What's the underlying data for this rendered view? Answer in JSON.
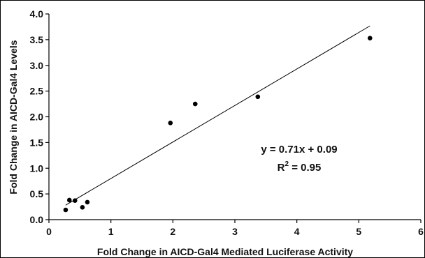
{
  "chart_data": {
    "type": "scatter",
    "xlabel": "Fold Change in AICD-Gal4 Mediated Luciferase Activity",
    "ylabel": "Fold Change in AICD-Gal4 Levels",
    "xlim": [
      0,
      6
    ],
    "ylim": [
      0,
      4
    ],
    "x_ticks": [
      "0",
      "1",
      "2",
      "3",
      "4",
      "5",
      "6"
    ],
    "y_ticks": [
      "0.0",
      "0.5",
      "1.0",
      "1.5",
      "2.0",
      "2.5",
      "3.0",
      "3.5",
      "4.0"
    ],
    "points": [
      {
        "x": 0.27,
        "y": 0.19
      },
      {
        "x": 0.33,
        "y": 0.38
      },
      {
        "x": 0.42,
        "y": 0.37
      },
      {
        "x": 0.54,
        "y": 0.24
      },
      {
        "x": 0.62,
        "y": 0.34
      },
      {
        "x": 1.96,
        "y": 1.88
      },
      {
        "x": 2.36,
        "y": 2.25
      },
      {
        "x": 3.37,
        "y": 2.39
      },
      {
        "x": 5.18,
        "y": 3.53
      }
    ],
    "trendline": {
      "type": "linear",
      "slope": 0.71,
      "intercept": 0.09,
      "x_range": [
        0.27,
        5.18
      ]
    },
    "equation_text": "y = 0.71x + 0.09",
    "r2_prefix": "R",
    "r2_sup": "2",
    "r2_value": " = 0.95",
    "grid": false,
    "legend": "none"
  }
}
